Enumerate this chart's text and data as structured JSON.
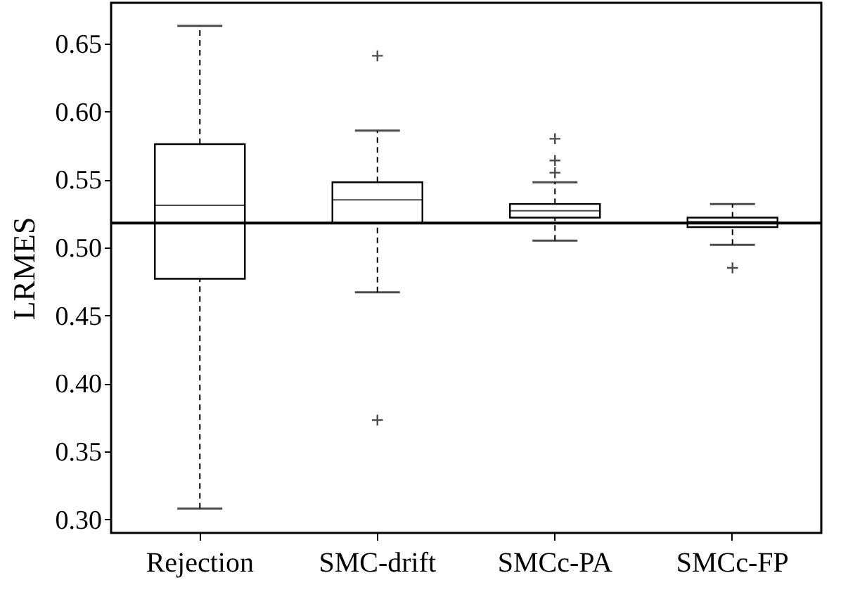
{
  "chart_data": {
    "type": "box",
    "ylabel": "LRMES",
    "categories": [
      "Rejection",
      "SMC-drift",
      "SMCc-PA",
      "SMCc-FP"
    ],
    "boxes": [
      {
        "low": 0.308,
        "q1": 0.477,
        "median": 0.531,
        "q3": 0.576,
        "high": 0.663
      },
      {
        "low": 0.467,
        "q1": 0.518,
        "median": 0.535,
        "q3": 0.548,
        "high": 0.586,
        "outliers": [
          0.641,
          0.373
        ]
      },
      {
        "low": 0.505,
        "q1": 0.522,
        "median": 0.527,
        "q3": 0.532,
        "high": 0.548,
        "outliers": [
          0.58,
          0.564,
          0.555
        ]
      },
      {
        "low": 0.502,
        "q1": 0.515,
        "median": 0.519,
        "q3": 0.522,
        "high": 0.532,
        "outliers": [
          0.485
        ]
      }
    ],
    "ylim": [
      0.29,
      0.68
    ],
    "yticks": [
      {
        "value": 0.3,
        "label": "0.30"
      },
      {
        "value": 0.35,
        "label": "0.35"
      },
      {
        "value": 0.4,
        "label": "0.40"
      },
      {
        "value": 0.45,
        "label": "0.45"
      },
      {
        "value": 0.5,
        "label": "0.50"
      },
      {
        "value": 0.55,
        "label": "0.55"
      },
      {
        "value": 0.6,
        "label": "0.60"
      },
      {
        "value": 0.65,
        "label": "0.65"
      }
    ],
    "ref_lines": [
      {
        "axis": "y",
        "value": 0.518,
        "color": "#000000",
        "line_style": "solid"
      }
    ],
    "grid": false,
    "marker": "cross",
    "line_style": "dashed"
  }
}
